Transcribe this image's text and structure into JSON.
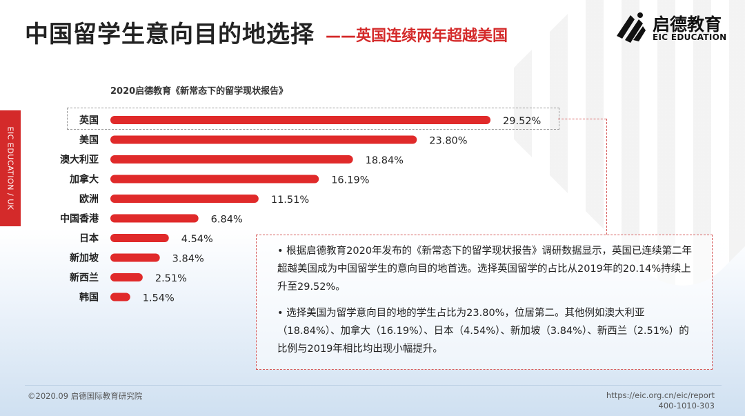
{
  "header": {
    "title": "中国留学生意向目的地选择",
    "subtitle": "——英国连续两年超越美国"
  },
  "logo": {
    "name_cn": "启德教育",
    "name_en": "EIC EDUCATION",
    "icon": "eic-logo-icon"
  },
  "side_tab": {
    "label": "EIC EDUCATION / UK"
  },
  "source_label": "2020启德教育《新常态下的留学现状报告》",
  "chart_data": {
    "type": "bar",
    "orientation": "horizontal",
    "categories": [
      "英国",
      "美国",
      "澳大利亚",
      "加拿大",
      "欧洲",
      "中国香港",
      "日本",
      "新加坡",
      "新西兰",
      "韩国"
    ],
    "values": [
      29.52,
      23.8,
      18.84,
      16.19,
      11.51,
      6.84,
      4.54,
      3.84,
      2.51,
      1.54
    ],
    "value_labels": [
      "29.52%",
      "23.80%",
      "18.84%",
      "16.19%",
      "11.51%",
      "6.84%",
      "4.54%",
      "3.84%",
      "2.51%",
      "1.54%"
    ],
    "xlim": [
      0,
      30
    ],
    "grid": false,
    "legend": "none",
    "bar_color": "#e02a2a",
    "highlighted_category": "英国"
  },
  "notes": [
    "•  根据启德教育2020年发布的《新常态下的留学现状报告》调研数据显示，英国已连续第二年超越美国成为中国留学生的意向目的地首选。选择英国留学的占比从2019年的20.14%持续上升至29.52%。",
    "•  选择美国为留学意向目的地的学生占比为23.80%，位居第二。其他例如澳大利亚（18.84%）、加拿大（16.19%）、日本（4.54%）、新加坡（3.84%）、新西兰（2.51%）的比例与2019年相比均出现小幅提升。"
  ],
  "footer": {
    "copyright": "©2020.09 启德国际教育研究院",
    "url": "https://eic.org.cn/eic/report",
    "phone": "400-1010-303"
  },
  "colors": {
    "accent": "#d42a2a"
  }
}
